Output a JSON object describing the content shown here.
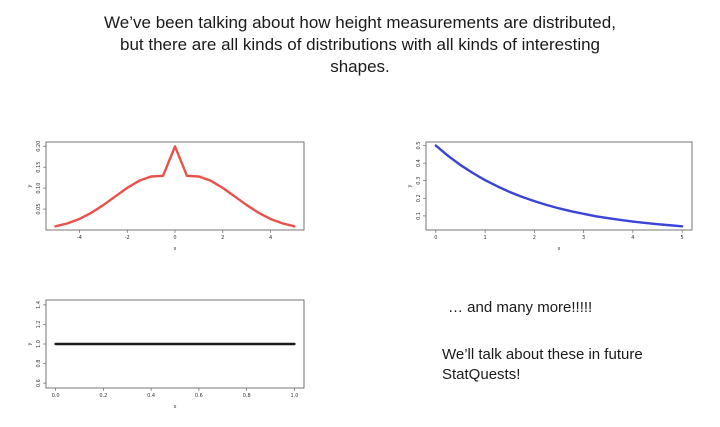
{
  "heading": {
    "line1": "We’ve been talking about how height measurements are distributed,",
    "line2": "but there are all kinds of distributions with all kinds of interesting",
    "line3": "shapes."
  },
  "more_text": "… and many more!!!!!",
  "future_line1": "We’ll talk about these in future",
  "future_line2": "StatQuests!",
  "chart_data": [
    {
      "type": "line",
      "distribution_shape": "normal",
      "color": "#e8524a",
      "x": [
        -5,
        -4.5,
        -4,
        -3.5,
        -3,
        -2.5,
        -2,
        -1.5,
        -1,
        -0.5,
        0,
        0.5,
        1,
        1.5,
        2,
        2.5,
        3,
        3.5,
        4,
        4.5,
        5
      ],
      "y": [
        0.0088,
        0.0158,
        0.0264,
        0.0411,
        0.0595,
        0.0801,
        0.1005,
        0.1174,
        0.1277,
        0.1293,
        0.1995,
        0.1293,
        0.1277,
        0.1174,
        0.1005,
        0.0801,
        0.0595,
        0.0411,
        0.0264,
        0.0158,
        0.0088
      ],
      "xlabel": "x",
      "ylabel": "y",
      "xticks": [
        -4,
        -2,
        0,
        2,
        4
      ],
      "yticks": [
        "0.05",
        "0.10",
        "0.15",
        "0.20"
      ],
      "xlim": [
        -5.4,
        5.4
      ],
      "ylim": [
        0,
        0.21
      ],
      "grid": false,
      "legend": "none"
    },
    {
      "type": "line",
      "distribution_shape": "exponential",
      "color": "#3a44d6",
      "x": [
        0,
        0.25,
        0.5,
        0.75,
        1,
        1.25,
        1.5,
        1.75,
        2,
        2.25,
        2.5,
        2.75,
        3,
        3.25,
        3.5,
        3.75,
        4,
        4.25,
        4.5,
        4.75,
        5
      ],
      "y": [
        0.5,
        0.441,
        0.389,
        0.344,
        0.303,
        0.268,
        0.236,
        0.208,
        0.184,
        0.162,
        0.143,
        0.126,
        0.112,
        0.098,
        0.087,
        0.077,
        0.068,
        0.06,
        0.053,
        0.047,
        0.041
      ],
      "xlabel": "x",
      "ylabel": "y",
      "xticks": [
        0,
        1,
        2,
        3,
        4,
        5
      ],
      "yticks": [
        "0.1",
        "0.2",
        "0.3",
        "0.4",
        "0.5"
      ],
      "xlim": [
        -0.2,
        5.2
      ],
      "ylim": [
        0.02,
        0.52
      ],
      "grid": false,
      "legend": "none"
    },
    {
      "type": "line",
      "distribution_shape": "uniform",
      "color": "#1a1a1a",
      "x": [
        0,
        1
      ],
      "y": [
        1,
        1
      ],
      "xlabel": "x",
      "ylabel": "y",
      "xticks": [
        "0.0",
        "0.2",
        "0.4",
        "0.6",
        "0.8",
        "1.0"
      ],
      "yticks": [
        "0.6",
        "0.8",
        "1.0",
        "1.2",
        "1.4"
      ],
      "xlim": [
        -0.04,
        1.04
      ],
      "ylim": [
        0.55,
        1.45
      ],
      "grid": false,
      "legend": "none"
    }
  ]
}
